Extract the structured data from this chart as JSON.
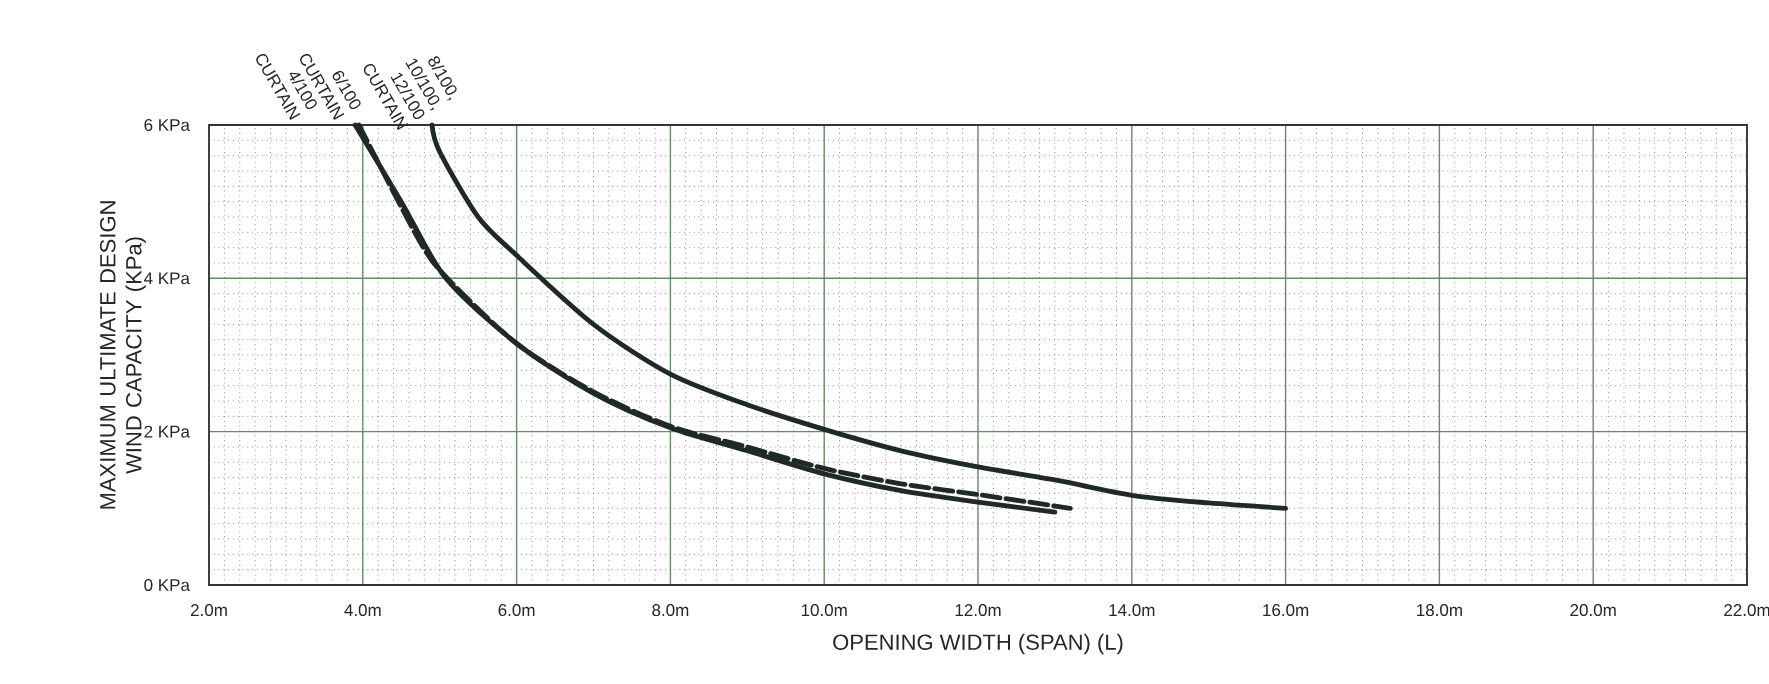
{
  "chart_data": {
    "type": "line",
    "xlabel": "OPENING WIDTH (SPAN) (L)",
    "ylabel": "MAXIMUM ULTIMATE DESIGN WIND CAPACITY (KPa)",
    "xlim": [
      2,
      22
    ],
    "ylim": [
      0,
      6
    ],
    "xticks": [
      {
        "value": 2,
        "label": "2.0m"
      },
      {
        "value": 4,
        "label": "4.0m"
      },
      {
        "value": 6,
        "label": "6.0m"
      },
      {
        "value": 8,
        "label": "8.0m"
      },
      {
        "value": 10,
        "label": "10.0m"
      },
      {
        "value": 12,
        "label": "12.0m"
      },
      {
        "value": 14,
        "label": "14.0m"
      },
      {
        "value": 16,
        "label": "16.0m"
      },
      {
        "value": 18,
        "label": "18.0m"
      },
      {
        "value": 20,
        "label": "20.0m"
      },
      {
        "value": 22,
        "label": "22.0m"
      }
    ],
    "yticks": [
      {
        "value": 0,
        "label": "0 KPa"
      },
      {
        "value": 2,
        "label": "2 KPa"
      },
      {
        "value": 4,
        "label": "4 KPa"
      },
      {
        "value": 6,
        "label": "6 KPa"
      }
    ],
    "grid": true,
    "marker": "none",
    "series": [
      {
        "name": "4/100 CURTAIN",
        "color": "#1f2a27",
        "line_style": "solid",
        "x": [
          3.9,
          4.5,
          5.08,
          6,
          7,
          8,
          9,
          10,
          11,
          12,
          13
        ],
        "values": [
          6,
          5,
          4,
          3.15,
          2.5,
          2.05,
          1.75,
          1.45,
          1.23,
          1.08,
          0.95
        ]
      },
      {
        "name": "6/100 CURTAIN",
        "color": "#1f2a27",
        "line_style": "dashed",
        "x": [
          3.95,
          4.73,
          5.1,
          6,
          7,
          8,
          9,
          10,
          11,
          12,
          13.2
        ],
        "values": [
          6,
          4.5,
          4,
          3.15,
          2.52,
          2.07,
          1.8,
          1.52,
          1.32,
          1.18,
          1.0
        ]
      },
      {
        "name": "8/100, 10/100, 12/100 CURTAIN",
        "color": "#1f2a27",
        "line_style": "solid",
        "x": [
          4.9,
          5,
          5.5,
          6,
          7,
          8,
          9,
          10,
          11,
          12,
          13,
          14,
          15,
          16
        ],
        "values": [
          6,
          5.65,
          4.8,
          4.3,
          3.4,
          2.75,
          2.35,
          2.03,
          1.75,
          1.54,
          1.37,
          1.17,
          1.07,
          1.0
        ]
      }
    ]
  }
}
